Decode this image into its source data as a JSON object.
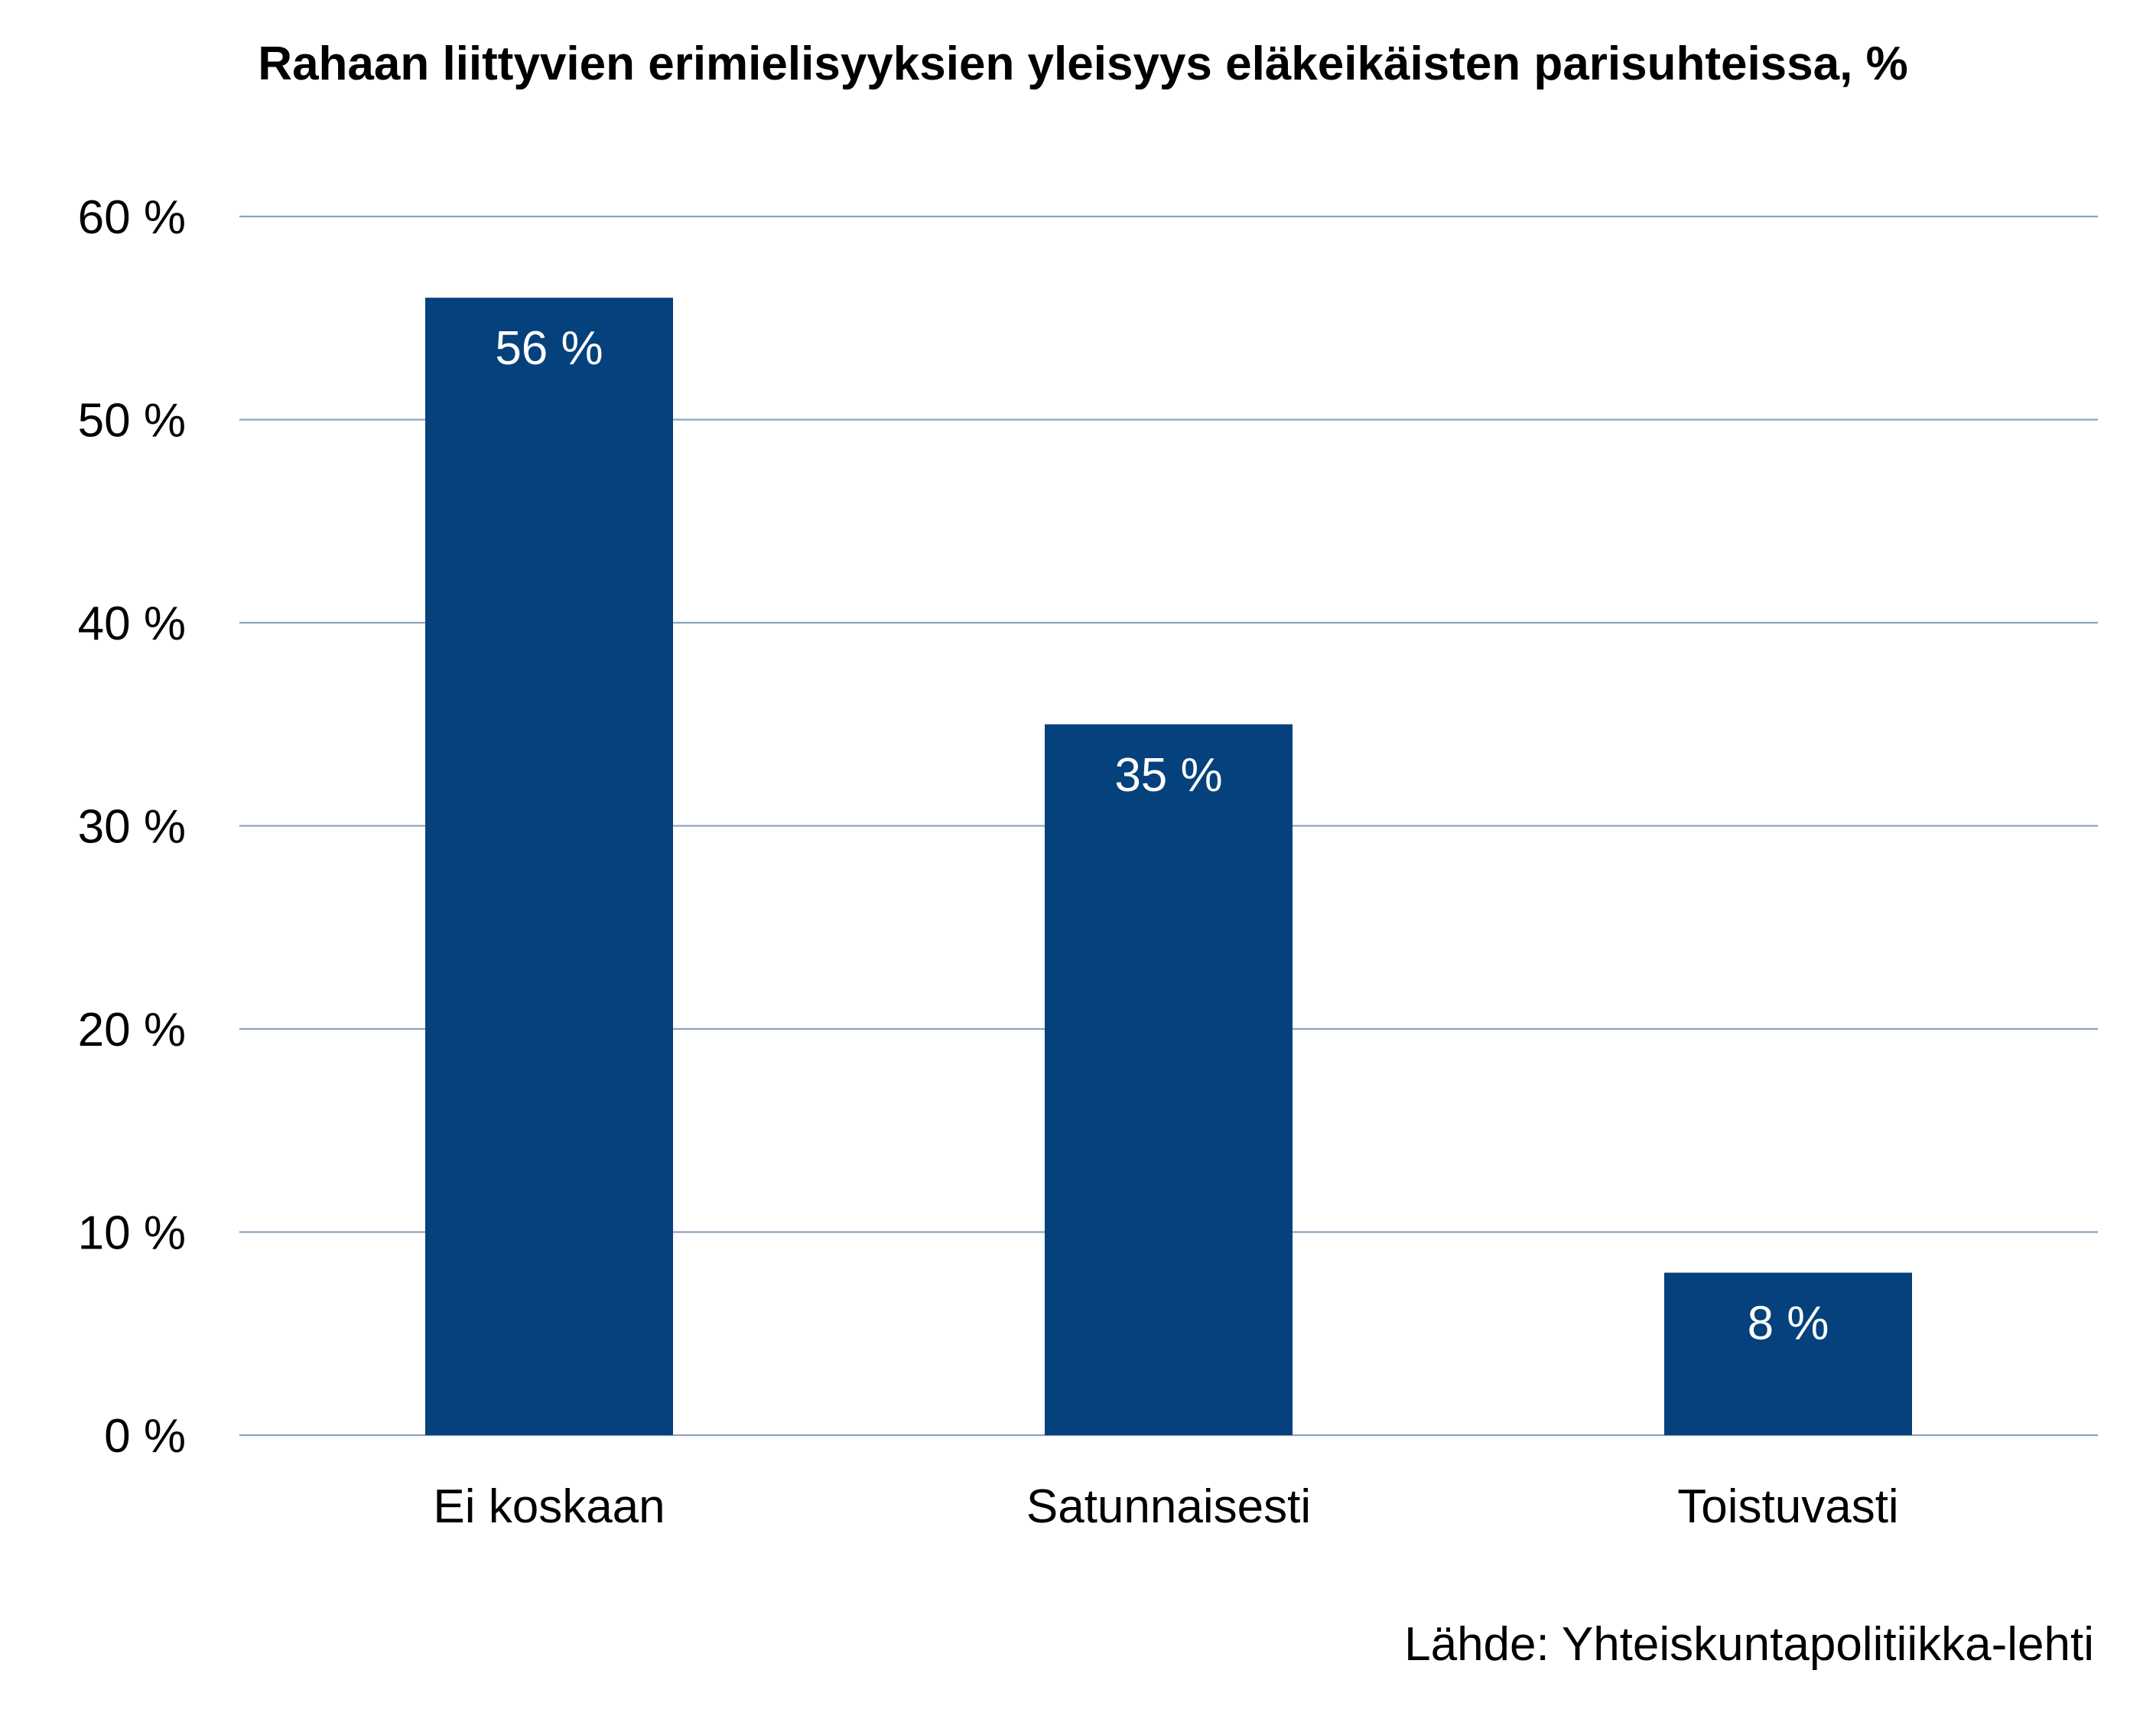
{
  "chart_data": {
    "type": "bar",
    "title": "Rahaan liittyvien erimielisyyksien yleisyys eläkeikäisten parisuhteissa, %",
    "categories": [
      "Ei koskaan",
      "Satunnaisesti",
      "Toistuvasti"
    ],
    "values": [
      56,
      35,
      8
    ],
    "data_labels": [
      "56 %",
      "35 %",
      "8 %"
    ],
    "ylim": [
      0,
      60
    ],
    "yticks": [
      0,
      10,
      20,
      30,
      40,
      50,
      60
    ],
    "ytick_labels": [
      "0 %",
      "10 %",
      "20 %",
      "30 %",
      "40 %",
      "50 %",
      "60 %"
    ],
    "xlabel": "",
    "ylabel": "",
    "grid": true,
    "legend": "none",
    "source": "Lähde: Yhteiskuntapolitiikka-lehti",
    "colors": {
      "bar": "#05417C",
      "gridline": "#8EA3BD",
      "data_label": "#FFFFFF",
      "text": "#000000"
    }
  }
}
